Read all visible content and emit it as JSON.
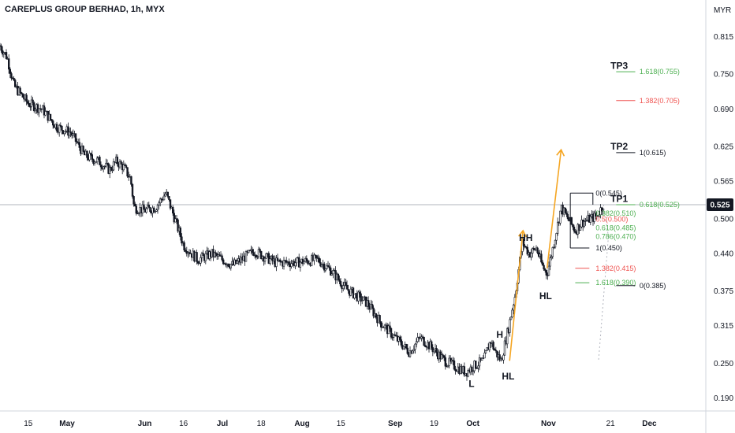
{
  "header": {
    "title": "CAREPLUS GROUP BERHAD, 1h, MYX"
  },
  "colors": {
    "candle": "#131722",
    "orange": "#f5a623",
    "green": "#4caf50",
    "red": "#ef5350",
    "price_tag_bg": "#131722",
    "price_tag_fg": "#ffffff",
    "grid": "#f0f3fa",
    "dotted": "#b2b5be"
  },
  "chart_data": {
    "type": "candlestick",
    "title": "CAREPLUS GROUP BERHAD, 1h, MYX",
    "currency_label": "MYR",
    "last_price_label": "0.525",
    "last_price": 0.525,
    "y_ticks": [
      {
        "value": 0.815,
        "label": "0.815"
      },
      {
        "value": 0.75,
        "label": "0.750"
      },
      {
        "value": 0.69,
        "label": "0.690"
      },
      {
        "value": 0.625,
        "label": "0.625"
      },
      {
        "value": 0.565,
        "label": "0.565"
      },
      {
        "value": 0.5,
        "label": "0.500"
      },
      {
        "value": 0.44,
        "label": "0.440"
      },
      {
        "value": 0.375,
        "label": "0.375"
      },
      {
        "value": 0.315,
        "label": "0.315"
      },
      {
        "value": 0.25,
        "label": "0.250"
      },
      {
        "value": 0.19,
        "label": "0.190"
      }
    ],
    "x_ticks": [
      {
        "label": "15",
        "t": 0.04,
        "bold": false
      },
      {
        "label": "May",
        "t": 0.095,
        "bold": true
      },
      {
        "label": "Jun",
        "t": 0.205,
        "bold": true
      },
      {
        "label": "16",
        "t": 0.26,
        "bold": false
      },
      {
        "label": "Jul",
        "t": 0.315,
        "bold": true
      },
      {
        "label": "18",
        "t": 0.37,
        "bold": false
      },
      {
        "label": "Aug",
        "t": 0.428,
        "bold": true
      },
      {
        "label": "15",
        "t": 0.483,
        "bold": false
      },
      {
        "label": "Sep",
        "t": 0.56,
        "bold": true
      },
      {
        "label": "19",
        "t": 0.615,
        "bold": false
      },
      {
        "label": "Oct",
        "t": 0.67,
        "bold": true
      },
      {
        "label": "Nov",
        "t": 0.777,
        "bold": true
      },
      {
        "label": "21",
        "t": 0.865,
        "bold": false
      },
      {
        "label": "Dec",
        "t": 0.92,
        "bold": true
      }
    ],
    "price_path": [
      {
        "t": 0.0,
        "p": 0.8
      },
      {
        "t": 0.01,
        "p": 0.78
      },
      {
        "t": 0.02,
        "p": 0.73
      },
      {
        "t": 0.04,
        "p": 0.7
      },
      {
        "t": 0.06,
        "p": 0.69
      },
      {
        "t": 0.08,
        "p": 0.66
      },
      {
        "t": 0.1,
        "p": 0.65
      },
      {
        "t": 0.12,
        "p": 0.61
      },
      {
        "t": 0.14,
        "p": 0.6
      },
      {
        "t": 0.155,
        "p": 0.585
      },
      {
        "t": 0.165,
        "p": 0.6
      },
      {
        "t": 0.175,
        "p": 0.59
      },
      {
        "t": 0.18,
        "p": 0.58
      },
      {
        "t": 0.185,
        "p": 0.57
      },
      {
        "t": 0.19,
        "p": 0.52
      },
      {
        "t": 0.205,
        "p": 0.515
      },
      {
        "t": 0.22,
        "p": 0.52
      },
      {
        "t": 0.235,
        "p": 0.545
      },
      {
        "t": 0.245,
        "p": 0.51
      },
      {
        "t": 0.26,
        "p": 0.455
      },
      {
        "t": 0.28,
        "p": 0.43
      },
      {
        "t": 0.3,
        "p": 0.44
      },
      {
        "t": 0.33,
        "p": 0.42
      },
      {
        "t": 0.36,
        "p": 0.445
      },
      {
        "t": 0.39,
        "p": 0.425
      },
      {
        "t": 0.42,
        "p": 0.425
      },
      {
        "t": 0.45,
        "p": 0.43
      },
      {
        "t": 0.47,
        "p": 0.41
      },
      {
        "t": 0.49,
        "p": 0.38
      },
      {
        "t": 0.52,
        "p": 0.355
      },
      {
        "t": 0.54,
        "p": 0.32
      },
      {
        "t": 0.56,
        "p": 0.295
      },
      {
        "t": 0.58,
        "p": 0.27
      },
      {
        "t": 0.595,
        "p": 0.295
      },
      {
        "t": 0.61,
        "p": 0.28
      },
      {
        "t": 0.63,
        "p": 0.255
      },
      {
        "t": 0.645,
        "p": 0.245
      },
      {
        "t": 0.66,
        "p": 0.235
      },
      {
        "t": 0.67,
        "p": 0.245
      },
      {
        "t": 0.685,
        "p": 0.255
      },
      {
        "t": 0.695,
        "p": 0.29
      },
      {
        "t": 0.702,
        "p": 0.27
      },
      {
        "t": 0.71,
        "p": 0.255
      },
      {
        "t": 0.72,
        "p": 0.31
      },
      {
        "t": 0.73,
        "p": 0.37
      },
      {
        "t": 0.74,
        "p": 0.46
      },
      {
        "t": 0.75,
        "p": 0.44
      },
      {
        "t": 0.76,
        "p": 0.45
      },
      {
        "t": 0.768,
        "p": 0.42
      },
      {
        "t": 0.775,
        "p": 0.405
      },
      {
        "t": 0.785,
        "p": 0.46
      },
      {
        "t": 0.795,
        "p": 0.52
      },
      {
        "t": 0.805,
        "p": 0.5
      },
      {
        "t": 0.815,
        "p": 0.48
      },
      {
        "t": 0.825,
        "p": 0.495
      },
      {
        "t": 0.835,
        "p": 0.5
      },
      {
        "t": 0.845,
        "p": 0.505
      },
      {
        "t": 0.855,
        "p": 0.525
      }
    ],
    "horizontal_line": 0.525
  },
  "annotations": {
    "waves": [
      {
        "label": "L",
        "t": 0.668,
        "p": 0.215
      },
      {
        "label": "H",
        "t": 0.708,
        "p": 0.3
      },
      {
        "label": "HL",
        "t": 0.72,
        "p": 0.228
      },
      {
        "label": "HH",
        "t": 0.745,
        "p": 0.468
      },
      {
        "label": "HL",
        "t": 0.773,
        "p": 0.367
      }
    ],
    "targets": [
      {
        "label": "TP3",
        "t": 0.865,
        "p": 0.765
      },
      {
        "label": "TP2",
        "t": 0.865,
        "p": 0.626
      },
      {
        "label": "TP1",
        "t": 0.865,
        "p": 0.535
      }
    ],
    "fib_right": [
      {
        "label": "1.618(0.755)",
        "p": 0.755,
        "color": "green"
      },
      {
        "label": "1.382(0.705)",
        "p": 0.705,
        "color": "red"
      },
      {
        "label": "1(0.615)",
        "p": 0.615,
        "color": "dark"
      },
      {
        "label": "0.618(0.525)",
        "p": 0.525,
        "color": "green"
      },
      {
        "label": "0(0.385)",
        "p": 0.385,
        "color": "dark"
      }
    ],
    "fib_left": [
      {
        "label": "0(0.545)",
        "p": 0.545,
        "color": "dark"
      },
      {
        "label": "0.382(0.510)",
        "p": 0.51,
        "color": "green"
      },
      {
        "label": "0.5(0.500)",
        "p": 0.5,
        "color": "red"
      },
      {
        "label": "0.618(0.485)",
        "p": 0.485,
        "color": "green"
      },
      {
        "label": "0.786(0.470)",
        "p": 0.47,
        "color": "green"
      },
      {
        "label": "1(0.450)",
        "p": 0.45,
        "color": "dark"
      },
      {
        "label": "1.382(0.415)",
        "p": 0.415,
        "color": "red"
      },
      {
        "label": "1.618(0.390)",
        "p": 0.39,
        "color": "green"
      }
    ]
  }
}
